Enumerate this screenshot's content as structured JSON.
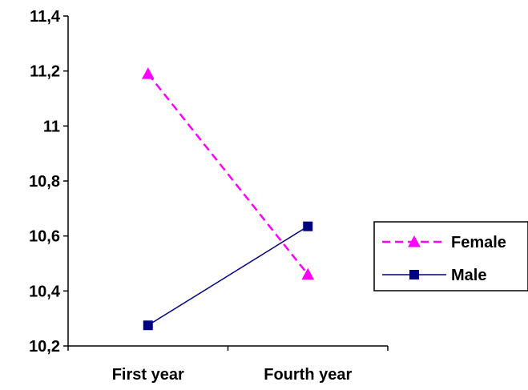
{
  "chart_data": {
    "type": "line",
    "title": "",
    "xlabel": "",
    "ylabel": "",
    "categories": [
      "First year",
      "Fourth year"
    ],
    "ylim": [
      10.2,
      11.4
    ],
    "yticks": [
      "10,2",
      "10,4",
      "10,6",
      "10,8",
      "11",
      "11,2",
      "11,4"
    ],
    "ytick_values": [
      10.2,
      10.4,
      10.6,
      10.8,
      11.0,
      11.2,
      11.4
    ],
    "legend_position": "right",
    "grid": false,
    "series": [
      {
        "name": "Female",
        "values": [
          11.19,
          10.46
        ],
        "color": "#FF00FF",
        "marker": "triangle",
        "dashed": true
      },
      {
        "name": "Male",
        "values": [
          10.275,
          10.635
        ],
        "color": "#000080",
        "marker": "square",
        "dashed": false
      }
    ]
  }
}
